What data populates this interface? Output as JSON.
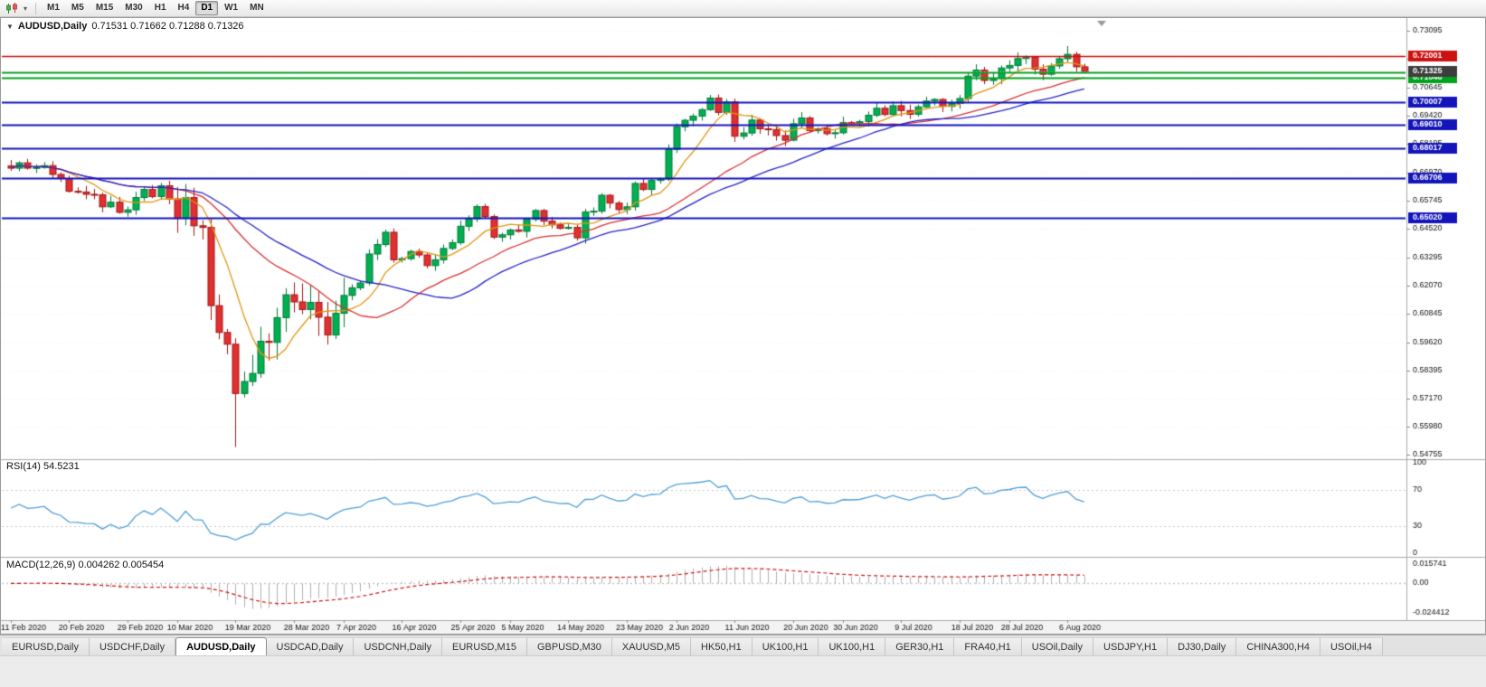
{
  "icons": {
    "collapse_arrow": "▼",
    "dropdown_caret": "▾"
  },
  "toolbar": {
    "timeframes": [
      {
        "label": "M1",
        "active": false
      },
      {
        "label": "M5",
        "active": false
      },
      {
        "label": "M15",
        "active": false
      },
      {
        "label": "M30",
        "active": false
      },
      {
        "label": "H1",
        "active": false
      },
      {
        "label": "H4",
        "active": false
      },
      {
        "label": "D1",
        "active": true
      },
      {
        "label": "W1",
        "active": false
      },
      {
        "label": "MN",
        "active": false
      }
    ]
  },
  "chart": {
    "title": "AUDUSD,Daily",
    "ohlc": "0.71531 0.71662 0.71288 0.71326",
    "rsi_label": "RSI(14) 54.5231",
    "macd_label": "MACD(12,26,9) 0.004262 0.005454"
  },
  "chart_data": {
    "type": "candlestick",
    "symbol": "AUDUSD",
    "timeframe": "Daily",
    "current": {
      "open": 0.71531,
      "high": 0.71662,
      "low": 0.71288,
      "close": 0.71326,
      "bid": 0.71325
    },
    "price_axis": {
      "view_max": 0.7352,
      "view_min": 0.5465,
      "ticks": [
        "0.73095",
        "0.71870",
        "0.70645",
        "0.69420",
        "0.68195",
        "0.66970",
        "0.65745",
        "0.64520",
        "0.63295",
        "0.62070",
        "0.60845",
        "0.59620",
        "0.58395",
        "0.57170",
        "0.55980",
        "0.54755"
      ]
    },
    "time_axis": [
      {
        "text": "11 Feb 2020",
        "i": 0
      },
      {
        "text": "20 Feb 2020",
        "i": 7
      },
      {
        "text": "29 Feb 2020",
        "i": 14
      },
      {
        "text": "10 Mar 2020",
        "i": 20
      },
      {
        "text": "19 Mar 2020",
        "i": 27
      },
      {
        "text": "28 Mar 2020",
        "i": 34
      },
      {
        "text": "7 Apr 2020",
        "i": 40
      },
      {
        "text": "16 Apr 2020",
        "i": 47
      },
      {
        "text": "25 Apr 2020",
        "i": 54
      },
      {
        "text": "5 May 2020",
        "i": 60
      },
      {
        "text": "14 May 2020",
        "i": 67
      },
      {
        "text": "23 May 2020",
        "i": 74
      },
      {
        "text": "2 Jun 2020",
        "i": 80
      },
      {
        "text": "11 Jun 2020",
        "i": 87
      },
      {
        "text": "20 Jun 2020",
        "i": 94
      },
      {
        "text": "30 Jun 2020",
        "i": 100
      },
      {
        "text": "9 Jul 2020",
        "i": 107
      },
      {
        "text": "18 Jul 2020",
        "i": 114
      },
      {
        "text": "28 Jul 2020",
        "i": 120
      },
      {
        "text": "6 Aug 2020",
        "i": 127
      }
    ],
    "first_open": 0.6725,
    "closes": [
      0.6715,
      0.6738,
      0.6715,
      0.6718,
      0.6726,
      0.6688,
      0.667,
      0.6615,
      0.6612,
      0.6602,
      0.66,
      0.6548,
      0.6568,
      0.6524,
      0.6535,
      0.6588,
      0.6623,
      0.6592,
      0.6639,
      0.6582,
      0.6498,
      0.6588,
      0.6466,
      0.6459,
      0.6121,
      0.6005,
      0.5954,
      0.5741,
      0.5793,
      0.5828,
      0.5967,
      0.5962,
      0.6069,
      0.6168,
      0.6137,
      0.6104,
      0.6135,
      0.6071,
      0.5994,
      0.6088,
      0.6165,
      0.6198,
      0.6219,
      0.6344,
      0.6385,
      0.6438,
      0.6319,
      0.6324,
      0.6355,
      0.634,
      0.6294,
      0.6319,
      0.6368,
      0.6393,
      0.6464,
      0.6496,
      0.6549,
      0.6506,
      0.6417,
      0.6427,
      0.6448,
      0.6442,
      0.6494,
      0.6532,
      0.6486,
      0.647,
      0.6455,
      0.6459,
      0.6414,
      0.6526,
      0.6529,
      0.6598,
      0.6564,
      0.6536,
      0.6548,
      0.6649,
      0.6623,
      0.6662,
      0.6668,
      0.6796,
      0.6894,
      0.6922,
      0.694,
      0.6968,
      0.7018,
      0.6956,
      0.7001,
      0.6853,
      0.6867,
      0.6923,
      0.6885,
      0.6882,
      0.6856,
      0.6836,
      0.6907,
      0.6932,
      0.6877,
      0.6885,
      0.6864,
      0.6868,
      0.6912,
      0.691,
      0.6916,
      0.6944,
      0.6974,
      0.6947,
      0.6985,
      0.6964,
      0.6948,
      0.698,
      0.7005,
      0.7012,
      0.6982,
      0.6995,
      0.7016,
      0.7113,
      0.7139,
      0.7094,
      0.7103,
      0.7148,
      0.7159,
      0.7189,
      0.7195,
      0.7143,
      0.7121,
      0.7157,
      0.7188,
      0.7207,
      0.71531,
      0.71326
    ],
    "wick_overrides": {
      "27": {
        "l": 0.551
      },
      "127": {
        "h": 0.7243
      },
      "129": {
        "o": 0.71531,
        "h": 0.71662,
        "l": 0.71288,
        "c": 0.71326
      }
    },
    "volatile_range": [
      20,
      40
    ],
    "moving_averages": [
      {
        "period": 7,
        "color": "#e0960f"
      },
      {
        "period": 21,
        "color": "#d83030"
      },
      {
        "period": 30,
        "color": "#2424c8"
      }
    ],
    "hlines": [
      {
        "value": 0.72001,
        "label": "0.72001",
        "color": "#cc1111",
        "width": 1.4,
        "badge": true
      },
      {
        "value": 0.7128,
        "label": "",
        "color": "#00a21e",
        "width": 1.8,
        "badge": false
      },
      {
        "value": 0.71046,
        "label": "0.71046",
        "color": "#00a21e",
        "width": 1.8,
        "badge": true
      },
      {
        "value": 0.70007,
        "label": "0.70007",
        "color": "#1414bb",
        "width": 2.2,
        "badge": true
      },
      {
        "value": 0.6901,
        "label": "0.69010",
        "color": "#1414bb",
        "width": 2.2,
        "badge": true
      },
      {
        "value": 0.68017,
        "label": "0.68017",
        "color": "#1414bb",
        "width": 2.2,
        "badge": true
      },
      {
        "value": 0.66706,
        "label": "0.66706",
        "color": "#1414bb",
        "width": 2.2,
        "badge": true
      },
      {
        "value": 0.6502,
        "label": "0.65020",
        "color": "#1414bb",
        "width": 2.2,
        "badge": true
      }
    ],
    "bid_line": {
      "value": 0.71325,
      "label": "0.71325",
      "badge_color": "#3d3d3d",
      "line_color": "#b5b5b5"
    },
    "rsi": {
      "period": 14,
      "current": "54.5231",
      "color": "#4f9fd8",
      "axis": [
        {
          "label": "100",
          "value": 100
        },
        {
          "label": "70",
          "value": 70
        },
        {
          "label": "30",
          "value": 30
        },
        {
          "label": "0",
          "value": 0
        }
      ],
      "dotted_levels": [
        70,
        30
      ]
    },
    "macd": {
      "fast": 12,
      "slow": 26,
      "signal_period": 9,
      "current_macd": "0.004262",
      "current_signal": "0.005454",
      "hist_color": "#b0b0b0",
      "signal_color": "#cc1111",
      "axis": [
        {
          "label": "0.015741",
          "value": 0.015741
        },
        {
          "label": "0.00",
          "value": 0
        },
        {
          "label": "-0.024412",
          "value": -0.024412
        }
      ],
      "view_max": 0.0205,
      "view_min": -0.029
    },
    "candle_colors": {
      "bull": "#00b050",
      "bull_edge": "#00793a",
      "bear": "#e03030",
      "bear_edge": "#a31515"
    }
  },
  "tabs": [
    {
      "label": "EURUSD,Daily",
      "active": false
    },
    {
      "label": "USDCHF,Daily",
      "active": false
    },
    {
      "label": "AUDUSD,Daily",
      "active": true
    },
    {
      "label": "USDCAD,Daily",
      "active": false
    },
    {
      "label": "USDCNH,Daily",
      "active": false
    },
    {
      "label": "EURUSD,M15",
      "active": false
    },
    {
      "label": "GBPUSD,M30",
      "active": false
    },
    {
      "label": "XAUUSD,M5",
      "active": false
    },
    {
      "label": "HK50,H1",
      "active": false
    },
    {
      "label": "UK100,H1",
      "active": false
    },
    {
      "label": "UK100,H1",
      "active": false
    },
    {
      "label": "GER30,H1",
      "active": false
    },
    {
      "label": "FRA40,H1",
      "active": false
    },
    {
      "label": "USOil,Daily",
      "active": false
    },
    {
      "label": "USDJPY,H1",
      "active": false
    },
    {
      "label": "DJ30,Daily",
      "active": false
    },
    {
      "label": "CHINA300,H4",
      "active": false
    },
    {
      "label": "USOil,H4",
      "active": false
    }
  ]
}
